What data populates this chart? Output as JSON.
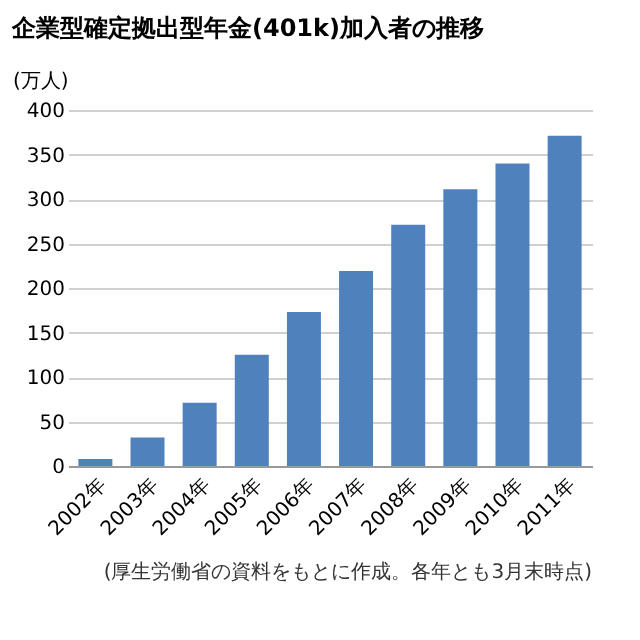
{
  "chart_data": {
    "type": "bar",
    "title": "企業型確定拠出型年金(401k)加入者の推移",
    "ylabel": "(万人)",
    "categories": [
      "2002年",
      "2003年",
      "2004年",
      "2005年",
      "2006年",
      "2007年",
      "2008年",
      "2009年",
      "2010年",
      "2011年"
    ],
    "values": [
      8,
      32,
      71,
      125,
      173,
      219,
      271,
      311,
      340,
      371
    ],
    "color": "#4f81bd",
    "ylim": [
      0,
      400
    ],
    "yticks": [
      0,
      50,
      100,
      150,
      200,
      250,
      300,
      350,
      400
    ],
    "grid": "y",
    "annotations": [
      "(厚生労働省の資料をもとに作成。各年とも3月末時点)"
    ]
  }
}
